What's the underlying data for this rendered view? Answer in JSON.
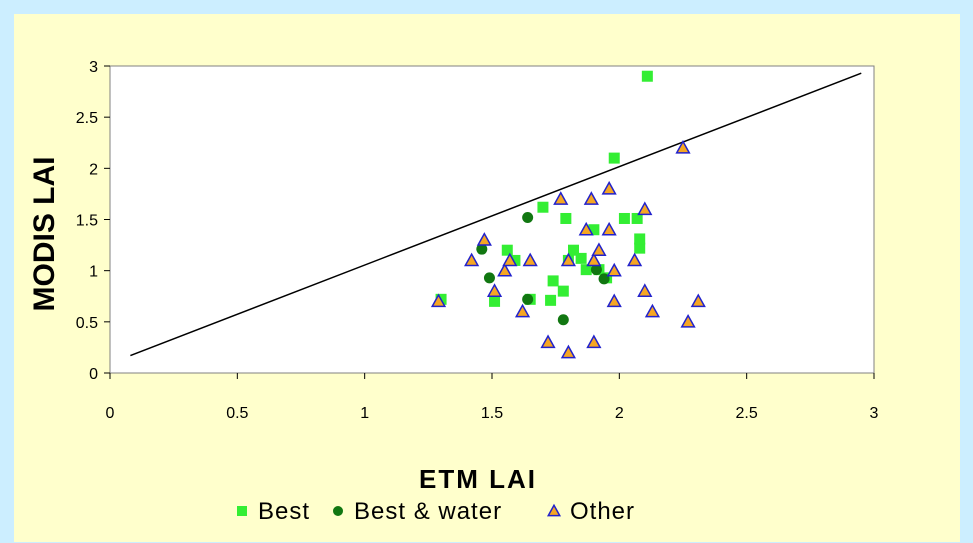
{
  "chart_data": {
    "type": "scatter",
    "xlabel": "ETM LAI",
    "ylabel": "MODIS LAI",
    "xlim": [
      0,
      3
    ],
    "ylim": [
      0,
      3
    ],
    "x_ticks": [
      "0",
      "0.5",
      "1",
      "1.5",
      "2",
      "2.5",
      "3"
    ],
    "y_ticks": [
      "0",
      "0.5",
      "1",
      "1.5",
      "2",
      "2.5",
      "3"
    ],
    "grid": false,
    "legend_position": "bottom",
    "reference_line": {
      "x": [
        0.08,
        2.95
      ],
      "y": [
        0.17,
        2.93
      ]
    },
    "series": [
      {
        "name": "Best",
        "marker": "square",
        "color": "#33ee33",
        "points": [
          [
            1.3,
            0.72
          ],
          [
            1.51,
            0.7
          ],
          [
            1.56,
            1.2
          ],
          [
            1.59,
            1.1
          ],
          [
            1.65,
            0.72
          ],
          [
            1.7,
            1.62
          ],
          [
            1.73,
            0.71
          ],
          [
            1.74,
            0.9
          ],
          [
            1.78,
            0.8
          ],
          [
            1.79,
            1.51
          ],
          [
            1.8,
            1.1
          ],
          [
            1.82,
            1.2
          ],
          [
            1.85,
            1.12
          ],
          [
            1.87,
            1.01
          ],
          [
            1.9,
            1.4
          ],
          [
            1.92,
            1.01
          ],
          [
            1.95,
            0.93
          ],
          [
            1.98,
            2.1
          ],
          [
            2.02,
            1.51
          ],
          [
            2.07,
            1.51
          ],
          [
            2.08,
            1.22
          ],
          [
            2.08,
            1.31
          ],
          [
            2.11,
            2.9
          ]
        ]
      },
      {
        "name": "Best & water",
        "marker": "circle",
        "color": "#117711",
        "points": [
          [
            1.46,
            1.21
          ],
          [
            1.49,
            0.93
          ],
          [
            1.64,
            1.52
          ],
          [
            1.64,
            0.72
          ],
          [
            1.78,
            0.52
          ],
          [
            1.91,
            1.01
          ],
          [
            1.94,
            0.92
          ]
        ]
      },
      {
        "name": "Other",
        "marker": "triangle",
        "color": "#f5a623",
        "stroke": "#2222cc",
        "points": [
          [
            1.29,
            0.7
          ],
          [
            1.42,
            1.1
          ],
          [
            1.47,
            1.3
          ],
          [
            1.51,
            0.8
          ],
          [
            1.55,
            1.0
          ],
          [
            1.57,
            1.1
          ],
          [
            1.62,
            0.6
          ],
          [
            1.65,
            1.1
          ],
          [
            1.72,
            0.3
          ],
          [
            1.77,
            1.7
          ],
          [
            1.8,
            1.1
          ],
          [
            1.8,
            0.2
          ],
          [
            1.87,
            1.4
          ],
          [
            1.89,
            1.7
          ],
          [
            1.9,
            1.1
          ],
          [
            1.9,
            0.3
          ],
          [
            1.92,
            1.2
          ],
          [
            1.96,
            1.8
          ],
          [
            1.96,
            1.4
          ],
          [
            1.98,
            1.0
          ],
          [
            1.98,
            0.7
          ],
          [
            2.06,
            1.1
          ],
          [
            2.1,
            1.6
          ],
          [
            2.1,
            0.8
          ],
          [
            2.13,
            0.6
          ],
          [
            2.25,
            2.2
          ],
          [
            2.27,
            0.5
          ],
          [
            2.31,
            0.7
          ]
        ]
      }
    ]
  }
}
